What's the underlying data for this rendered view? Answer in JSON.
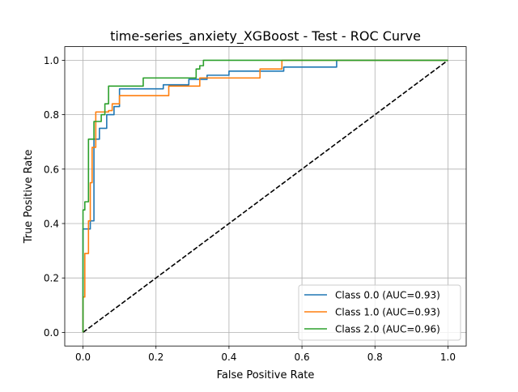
{
  "chart_data": {
    "type": "line",
    "title": "time-series_anxiety_XGBoost - Test - ROC Curve",
    "xlabel": "False Positive Rate",
    "ylabel": "True Positive Rate",
    "xlim": [
      -0.05,
      1.05
    ],
    "ylim": [
      -0.05,
      1.05
    ],
    "xticks": [
      0.0,
      0.2,
      0.4,
      0.6,
      0.8,
      1.0
    ],
    "yticks": [
      0.0,
      0.2,
      0.4,
      0.6,
      0.8,
      1.0
    ],
    "xtick_labels": [
      "0.0",
      "0.2",
      "0.4",
      "0.6",
      "0.8",
      "1.0"
    ],
    "ytick_labels": [
      "0.0",
      "0.2",
      "0.4",
      "0.6",
      "0.8",
      "1.0"
    ],
    "grid": true,
    "legend_position": "lower-right",
    "series": [
      {
        "name": "Class 0.0 (AUC=0.93)",
        "color": "#1f77b4",
        "x": [
          0,
          0,
          0.005,
          0.005,
          0.02,
          0.02,
          0.03,
          0.03,
          0.035,
          0.035,
          0.045,
          0.045,
          0.065,
          0.065,
          0.085,
          0.085,
          0.1,
          0.1,
          0.22,
          0.22,
          0.29,
          0.29,
          0.34,
          0.34,
          0.4,
          0.4,
          0.49,
          0.49,
          0.55,
          0.55,
          0.695,
          0.695,
          1.0
        ],
        "y": [
          0,
          0.38,
          0.38,
          0.38,
          0.38,
          0.41,
          0.41,
          0.71,
          0.71,
          0.71,
          0.71,
          0.75,
          0.75,
          0.8,
          0.8,
          0.83,
          0.83,
          0.895,
          0.895,
          0.91,
          0.91,
          0.93,
          0.93,
          0.945,
          0.945,
          0.96,
          0.96,
          0.96,
          0.96,
          0.975,
          0.975,
          1.0,
          1.0
        ]
      },
      {
        "name": "Class 1.0 (AUC=0.93)",
        "color": "#ff7f0e",
        "x": [
          0,
          0,
          0.005,
          0.005,
          0.015,
          0.015,
          0.02,
          0.02,
          0.025,
          0.025,
          0.035,
          0.035,
          0.07,
          0.07,
          0.08,
          0.08,
          0.1,
          0.1,
          0.235,
          0.235,
          0.31,
          0.31,
          0.32,
          0.32,
          0.485,
          0.485,
          0.545,
          0.545,
          1.0
        ],
        "y": [
          0,
          0.13,
          0.13,
          0.29,
          0.29,
          0.41,
          0.41,
          0.55,
          0.55,
          0.68,
          0.68,
          0.81,
          0.81,
          0.815,
          0.815,
          0.84,
          0.84,
          0.87,
          0.87,
          0.905,
          0.905,
          0.905,
          0.905,
          0.935,
          0.935,
          0.968,
          0.968,
          1.0,
          1.0
        ]
      },
      {
        "name": "Class 2.0 (AUC=0.96)",
        "color": "#2ca02c",
        "x": [
          0,
          0,
          0.005,
          0.005,
          0.015,
          0.015,
          0.02,
          0.02,
          0.03,
          0.03,
          0.05,
          0.05,
          0.06,
          0.06,
          0.07,
          0.07,
          0.165,
          0.165,
          0.31,
          0.31,
          0.32,
          0.32,
          0.33,
          0.33,
          1.0
        ],
        "y": [
          0,
          0.45,
          0.45,
          0.48,
          0.48,
          0.71,
          0.71,
          0.71,
          0.71,
          0.775,
          0.775,
          0.8,
          0.8,
          0.84,
          0.84,
          0.905,
          0.905,
          0.935,
          0.935,
          0.968,
          0.968,
          0.98,
          0.98,
          1.0,
          1.0
        ]
      },
      {
        "name": "",
        "color": "#000000",
        "dashed": true,
        "x": [
          0,
          1
        ],
        "y": [
          0,
          1
        ]
      }
    ]
  }
}
